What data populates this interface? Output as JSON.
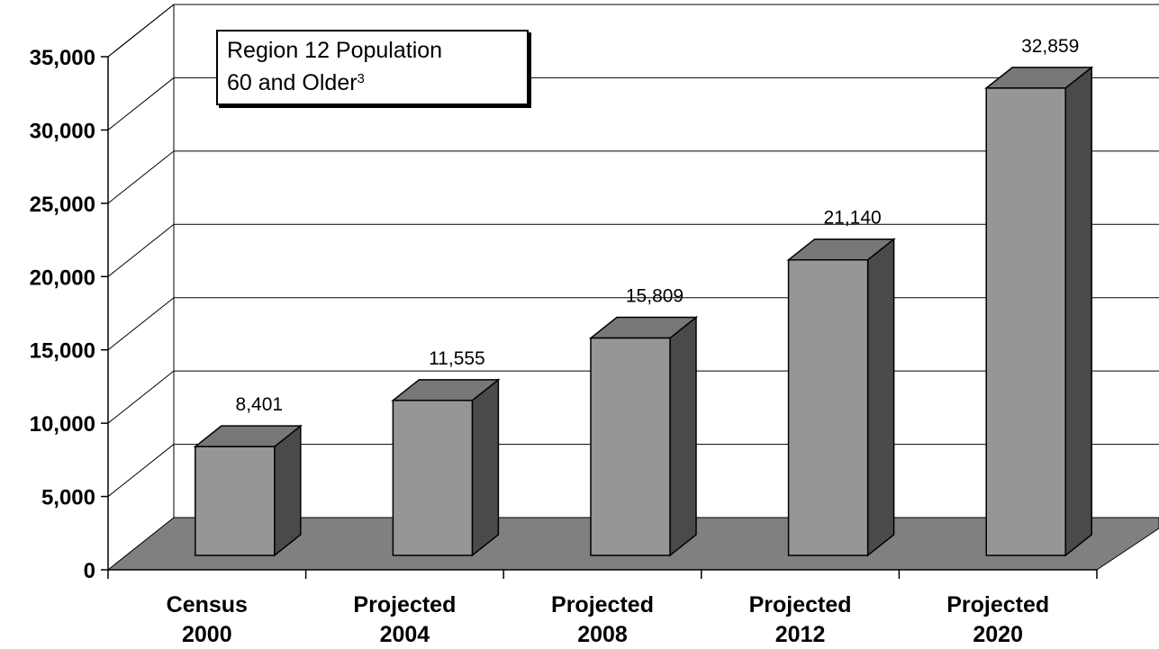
{
  "chart_data": {
    "type": "bar",
    "title_line1": "Region 12 Population",
    "title_line2": "60 and Older",
    "title_footnote": "3",
    "categories": [
      {
        "line1": "Census",
        "line2": "2000"
      },
      {
        "line1": "Projected",
        "line2": "2004"
      },
      {
        "line1": "Projected",
        "line2": "2008"
      },
      {
        "line1": "Projected",
        "line2": "2012"
      },
      {
        "line1": "Projected",
        "line2": "2020"
      }
    ],
    "values": [
      8401,
      11555,
      15809,
      21140,
      32859
    ],
    "data_labels": [
      "8,401",
      "11,555",
      "15,809",
      "21,140",
      "32,859"
    ],
    "y_ticks": [
      {
        "value": 0,
        "label": "0"
      },
      {
        "value": 5000,
        "label": "5,000"
      },
      {
        "value": 10000,
        "label": "10,000"
      },
      {
        "value": 15000,
        "label": "15,000"
      },
      {
        "value": 20000,
        "label": "20,000"
      },
      {
        "value": 25000,
        "label": "25,000"
      },
      {
        "value": 30000,
        "label": "30,000"
      },
      {
        "value": 35000,
        "label": "35,000"
      }
    ],
    "ylim": [
      0,
      35000
    ],
    "grid": true,
    "style": "3d-bar",
    "colors": {
      "bar_front": "#969696",
      "bar_top": "#777777",
      "bar_side": "#4a4a4a",
      "floor": "#808080",
      "grid": "#000000"
    }
  }
}
